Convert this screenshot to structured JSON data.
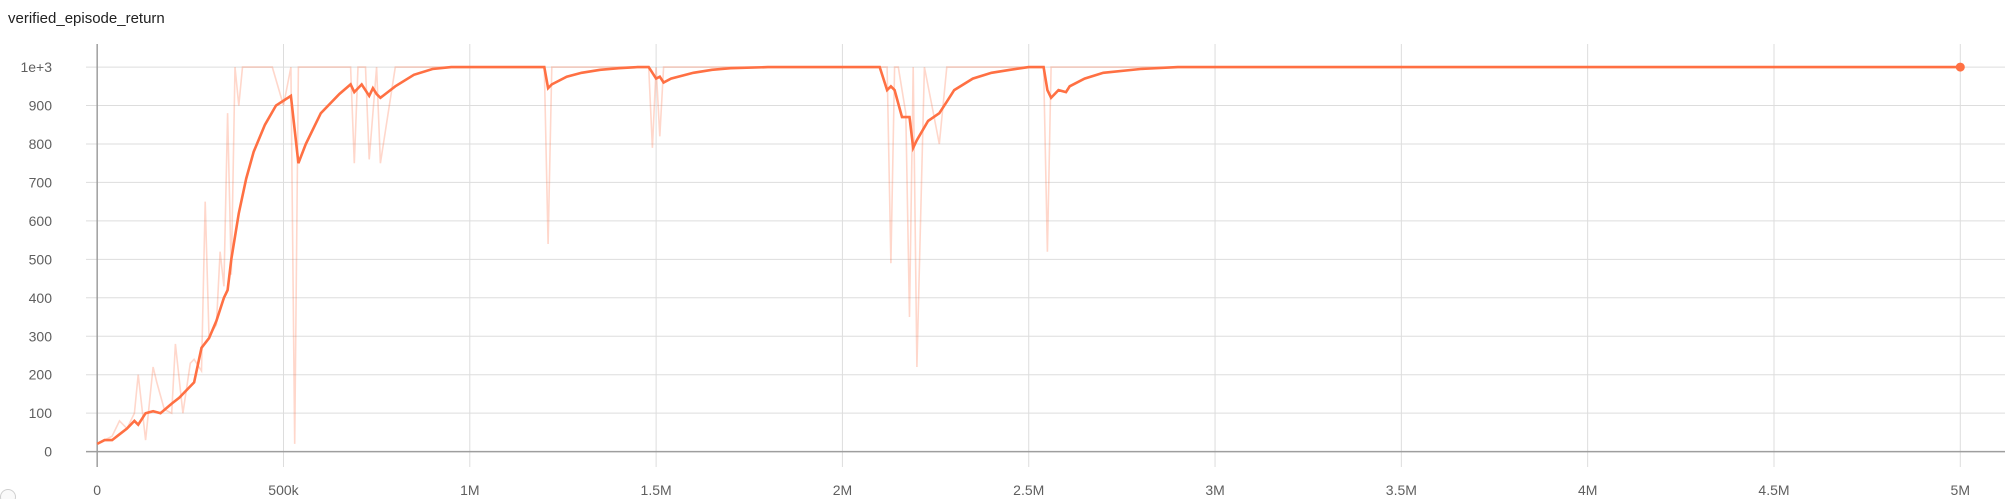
{
  "chart_title": "verified_episode_return",
  "colors": {
    "series": "#ff7043",
    "grid": "#dddddd",
    "axis": "#9e9e9e"
  },
  "chart_data": {
    "type": "line",
    "title": "verified_episode_return",
    "xlabel": "",
    "ylabel": "",
    "xlim": [
      -30000,
      5120000
    ],
    "ylim": [
      -40,
      1060
    ],
    "x_ticks": [
      0,
      500000,
      1000000,
      1500000,
      2000000,
      2500000,
      3000000,
      3500000,
      4000000,
      4500000,
      5000000
    ],
    "x_tick_labels": [
      "0",
      "500k",
      "1M",
      "1.5M",
      "2M",
      "2.5M",
      "3M",
      "3.5M",
      "4M",
      "4.5M",
      "5M"
    ],
    "y_ticks": [
      0,
      100,
      200,
      300,
      400,
      500,
      600,
      700,
      800,
      900,
      1000
    ],
    "y_tick_labels": [
      "0",
      "100",
      "200",
      "300",
      "400",
      "500",
      "600",
      "700",
      "800",
      "900",
      "1e+3"
    ],
    "grid": true,
    "series": [
      {
        "kind": "raw",
        "x": [
          0,
          20000,
          40000,
          60000,
          80000,
          100000,
          110000,
          130000,
          150000,
          160000,
          180000,
          200000,
          210000,
          230000,
          250000,
          260000,
          280000,
          290000,
          300000,
          320000,
          330000,
          340000,
          350000,
          360000,
          370000,
          380000,
          390000,
          420000,
          470000,
          500000,
          520000,
          530000,
          540000,
          560000,
          600000,
          640000,
          680000,
          690000,
          700000,
          720000,
          730000,
          750000,
          760000,
          800000,
          900000,
          1000000,
          1100000,
          1200000,
          1210000,
          1220000,
          1240000,
          1300000,
          1400000,
          1480000,
          1490000,
          1500000,
          1510000,
          1520000,
          1540000,
          1600000,
          1700000,
          1800000,
          1900000,
          2000000,
          2100000,
          2120000,
          2130000,
          2140000,
          2150000,
          2170000,
          2180000,
          2190000,
          2200000,
          2220000,
          2240000,
          2260000,
          2280000,
          2300000,
          2400000,
          2500000,
          2540000,
          2550000,
          2560000,
          2580000,
          2600000,
          2620000,
          2700000,
          2800000,
          2900000,
          3000000,
          3500000,
          4000000,
          4500000,
          5000000
        ],
        "y": [
          20,
          30,
          40,
          80,
          60,
          100,
          200,
          30,
          220,
          180,
          110,
          100,
          280,
          100,
          230,
          240,
          210,
          650,
          300,
          330,
          520,
          430,
          880,
          460,
          1000,
          900,
          1000,
          1000,
          1000,
          900,
          1000,
          20,
          1000,
          1000,
          1000,
          1000,
          1000,
          750,
          1000,
          1000,
          760,
          1000,
          750,
          1000,
          1000,
          1000,
          1000,
          1000,
          540,
          1000,
          1000,
          1000,
          1000,
          1000,
          790,
          1000,
          820,
          1000,
          1000,
          1000,
          1000,
          1000,
          1000,
          1000,
          1000,
          1000,
          490,
          1000,
          1000,
          880,
          350,
          1000,
          220,
          1000,
          900,
          800,
          1000,
          1000,
          1000,
          1000,
          1000,
          520,
          1000,
          1000,
          1000,
          1000,
          1000,
          1000,
          1000,
          1000,
          1000,
          1000,
          1000,
          1000
        ]
      },
      {
        "kind": "smoothed",
        "x": [
          0,
          20000,
          40000,
          60000,
          80000,
          100000,
          110000,
          130000,
          150000,
          170000,
          200000,
          220000,
          240000,
          260000,
          280000,
          300000,
          320000,
          340000,
          350000,
          360000,
          380000,
          400000,
          420000,
          450000,
          480000,
          520000,
          540000,
          560000,
          600000,
          650000,
          680000,
          690000,
          710000,
          730000,
          740000,
          750000,
          760000,
          780000,
          800000,
          850000,
          900000,
          950000,
          1000000,
          1100000,
          1200000,
          1210000,
          1220000,
          1260000,
          1300000,
          1350000,
          1400000,
          1450000,
          1480000,
          1500000,
          1510000,
          1520000,
          1540000,
          1600000,
          1650000,
          1700000,
          1800000,
          1900000,
          2000000,
          2100000,
          2120000,
          2130000,
          2140000,
          2160000,
          2180000,
          2190000,
          2200000,
          2230000,
          2260000,
          2280000,
          2300000,
          2350000,
          2400000,
          2450000,
          2500000,
          2540000,
          2550000,
          2560000,
          2580000,
          2600000,
          2610000,
          2650000,
          2700000,
          2800000,
          2900000,
          3000000,
          3500000,
          4000000,
          4500000,
          5000000
        ],
        "y": [
          20,
          30,
          30,
          45,
          60,
          80,
          70,
          100,
          105,
          100,
          125,
          140,
          160,
          180,
          270,
          295,
          340,
          400,
          420,
          500,
          620,
          710,
          780,
          850,
          900,
          925,
          750,
          800,
          880,
          930,
          955,
          935,
          955,
          925,
          945,
          930,
          920,
          935,
          950,
          980,
          995,
          1000,
          1000,
          1000,
          1000,
          945,
          955,
          975,
          985,
          993,
          997,
          1000,
          1000,
          970,
          975,
          960,
          970,
          985,
          993,
          997,
          1000,
          1000,
          1000,
          1000,
          940,
          950,
          940,
          870,
          870,
          790,
          810,
          860,
          880,
          910,
          940,
          970,
          985,
          993,
          1000,
          1000,
          940,
          920,
          940,
          935,
          950,
          970,
          985,
          995,
          1000,
          1000,
          1000,
          1000,
          1000,
          1000
        ]
      }
    ]
  }
}
